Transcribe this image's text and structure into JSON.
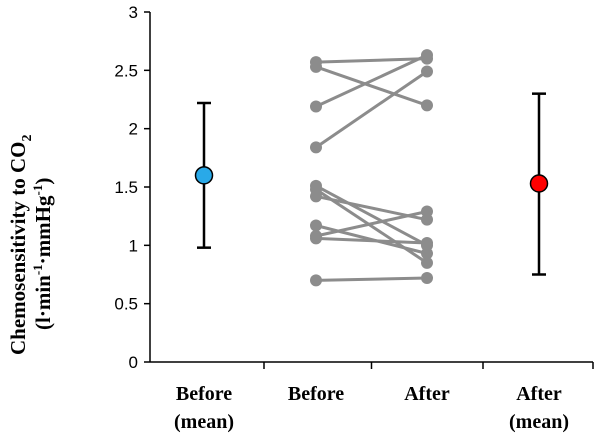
{
  "chart_data": {
    "type": "scatter",
    "ylabel": "Chemosensitivity to CO",
    "ylabel_subscript": "2",
    "yunits": {
      "open": "(l·min",
      "sup1": "-1",
      "mid": "·mmHg",
      "sup2": "-1",
      "close": ")"
    },
    "ylim": [
      0,
      3
    ],
    "yticks": [
      "0",
      "0.5",
      "1",
      "1.5",
      "2",
      "2.5",
      "3"
    ],
    "categories": [
      {
        "line1": "Before",
        "line2": "(mean)"
      },
      {
        "line1": "Before",
        "line2": ""
      },
      {
        "line1": "After",
        "line2": ""
      },
      {
        "line1": "After",
        "line2": "(mean)"
      }
    ],
    "means": [
      {
        "name": "Before (mean)",
        "category_index": 0,
        "mean": 1.6,
        "err_low": 0.98,
        "err_high": 2.22,
        "color": "#29a9e8"
      },
      {
        "name": "After (mean)",
        "category_index": 3,
        "mean": 1.53,
        "err_low": 0.75,
        "err_high": 2.3,
        "color": "#ff0000"
      }
    ],
    "paired": [
      {
        "before": 2.57,
        "after": 2.6
      },
      {
        "before": 2.53,
        "after": 2.2
      },
      {
        "before": 2.19,
        "after": 2.63
      },
      {
        "before": 1.84,
        "after": 2.49
      },
      {
        "before": 1.51,
        "after": 1.0
      },
      {
        "before": 1.48,
        "after": 0.85
      },
      {
        "before": 1.42,
        "after": 1.22
      },
      {
        "before": 1.17,
        "after": 0.93
      },
      {
        "before": 1.08,
        "after": 1.29
      },
      {
        "before": 1.06,
        "after": 1.02
      },
      {
        "before": 0.7,
        "after": 0.72
      }
    ],
    "paired_color": "#8c8c8c",
    "axis_color": "#000000"
  }
}
